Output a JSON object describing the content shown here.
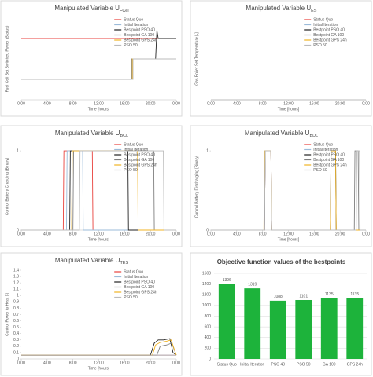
{
  "chart_data": [
    {
      "type": "line",
      "title": "Manipulated Variable U",
      "title_sub": "FCel",
      "x_label": "Time [hours]",
      "y_label": "Fuel Cell Set Switched Power (Status)",
      "xlim": [
        0,
        24
      ],
      "ylim": [
        0,
        1
      ],
      "xticks": [
        {
          "value": 0,
          "label": "0:00"
        },
        {
          "value": 4,
          "label": "4:00"
        },
        {
          "value": 8,
          "label": "8:00"
        },
        {
          "value": 12,
          "label": "12:00"
        },
        {
          "value": 16,
          "label": "16:00"
        },
        {
          "value": 20,
          "label": "20:00"
        },
        {
          "value": 24,
          "label": "0:00"
        }
      ],
      "legend": "upper-right",
      "series": [
        {
          "name": "Status Quo",
          "color": "#e8413c",
          "x": [
            0,
            24
          ],
          "values": [
            0.75,
            0.75
          ]
        },
        {
          "name": "Initial Iteration",
          "color": "#9bbbd9",
          "x": [
            0,
            17,
            17,
            24
          ],
          "values": [
            0.25,
            0.25,
            0.5,
            0.5
          ]
        },
        {
          "name": "Bestpoint PSO 40",
          "color": "#222222",
          "x": [
            0,
            17,
            17,
            20.8,
            21,
            21.2,
            24
          ],
          "values": [
            0.25,
            0.25,
            0.5,
            0.5,
            0.85,
            0.75,
            0.75
          ]
        },
        {
          "name": "Bestpoint GA 100",
          "color": "#7f7f7f",
          "x": [
            0,
            17.1,
            17.1,
            24
          ],
          "values": [
            0.25,
            0.25,
            0.5,
            0.5
          ]
        },
        {
          "name": "Bestpoint GPS 24h",
          "color": "#f0b323",
          "x": [
            0,
            17.2,
            17.2,
            24
          ],
          "values": [
            0.25,
            0.25,
            0.5,
            0.5
          ]
        },
        {
          "name": "PSO 50",
          "color": "#bbbbbb",
          "x": [
            0,
            17.3,
            17.3,
            24
          ],
          "values": [
            0.25,
            0.25,
            0.5,
            0.5
          ]
        }
      ]
    },
    {
      "type": "line",
      "title": "Manipulated Variable U",
      "title_sub": "ES",
      "x_label": "Time [hours]",
      "y_label": "Gas Boiler Set Temperature [-]",
      "xlim": [
        0,
        24
      ],
      "ylim": [
        0,
        1
      ],
      "xticks": [
        {
          "value": 0,
          "label": "0:00"
        },
        {
          "value": 4,
          "label": "4:00"
        },
        {
          "value": 8,
          "label": "8:00"
        },
        {
          "value": 12,
          "label": "12:00"
        },
        {
          "value": 16,
          "label": "16:00"
        },
        {
          "value": 20,
          "label": "20:00"
        },
        {
          "value": 24,
          "label": "0:00"
        }
      ],
      "legend": "upper-right",
      "series": [
        {
          "name": "Status Quo",
          "color": "#e8413c",
          "x": [
            0,
            24
          ],
          "values": [
            0,
            0
          ]
        },
        {
          "name": "Initial Iteration",
          "color": "#9bbbd9",
          "x": [
            0,
            24
          ],
          "values": [
            0,
            0
          ]
        },
        {
          "name": "Bestpoint PSO 40",
          "color": "#222222",
          "x": [
            0,
            24
          ],
          "values": [
            0,
            0
          ]
        },
        {
          "name": "Bestpoint GA 100",
          "color": "#7f7f7f",
          "x": [
            0,
            24
          ],
          "values": [
            0,
            0
          ]
        },
        {
          "name": "Bestpoint GPS 24h",
          "color": "#f0b323",
          "x": [
            0,
            24
          ],
          "values": [
            0,
            0
          ]
        },
        {
          "name": "PSO 50",
          "color": "#bbbbbb",
          "x": [
            0,
            24
          ],
          "values": [
            0,
            0
          ]
        }
      ]
    },
    {
      "type": "line",
      "title": "Manipulated Variable U",
      "title_sub": "BCL",
      "x_label": "Time [hours]",
      "y_label": "Control Battery Charging [Binary]",
      "xlim": [
        0,
        24
      ],
      "ylim": [
        0,
        1.1
      ],
      "yticks": [
        0,
        1
      ],
      "xticks": [
        {
          "value": 0,
          "label": "0:00"
        },
        {
          "value": 4,
          "label": "4:00"
        },
        {
          "value": 8,
          "label": "8:00"
        },
        {
          "value": 12,
          "label": "12:00"
        },
        {
          "value": 16,
          "label": "16:00"
        },
        {
          "value": 20,
          "label": "20:00"
        },
        {
          "value": 24,
          "label": "0:00"
        }
      ],
      "legend": "upper-right",
      "series": [
        {
          "name": "Status Quo",
          "color": "#e8413c",
          "x": [
            0,
            6.5,
            6.6,
            11,
            11.1,
            24
          ],
          "values": [
            0,
            0,
            1,
            1,
            0,
            0
          ]
        },
        {
          "name": "Initial Iteration",
          "color": "#9bbbd9",
          "x": [
            0,
            7,
            7.1,
            9.5,
            9.6,
            24
          ],
          "values": [
            0,
            0,
            1,
            1,
            0,
            0
          ]
        },
        {
          "name": "Bestpoint PSO 40",
          "color": "#222222",
          "x": [
            0,
            7.5,
            7.6,
            16.5,
            16.6,
            24
          ],
          "values": [
            0,
            0,
            1,
            1,
            0,
            0
          ]
        },
        {
          "name": "Bestpoint GA 100",
          "color": "#7f7f7f",
          "x": [
            0,
            8,
            8.1,
            20.5,
            20.6,
            24
          ],
          "values": [
            0,
            0,
            1,
            1,
            0,
            0
          ]
        },
        {
          "name": "Bestpoint GPS 24h",
          "color": "#f0b323",
          "x": [
            0,
            7.8,
            7.9,
            18,
            18.1,
            24
          ],
          "values": [
            0,
            0,
            1,
            1,
            0,
            0
          ]
        },
        {
          "name": "PSO 50",
          "color": "#bbbbbb",
          "x": [
            0,
            9,
            9.1,
            22,
            22.1,
            24
          ],
          "values": [
            0,
            0,
            1,
            1,
            0,
            0
          ]
        }
      ]
    },
    {
      "type": "line",
      "title": "Manipulated Variable U",
      "title_sub": "BDL",
      "x_label": "Time [hours]",
      "y_label": "Control Battery Discharging [Binary]",
      "xlim": [
        0,
        24
      ],
      "ylim": [
        0,
        1.1
      ],
      "yticks": [
        0,
        1
      ],
      "xticks": [
        {
          "value": 0,
          "label": "0:00"
        },
        {
          "value": 4,
          "label": "4:00"
        },
        {
          "value": 8,
          "label": "8:00"
        },
        {
          "value": 12,
          "label": "12:00"
        },
        {
          "value": 16,
          "label": "16:00"
        },
        {
          "value": 20,
          "label": "20:00"
        },
        {
          "value": 24,
          "label": "0:00"
        }
      ],
      "legend": "upper-right",
      "series": [
        {
          "name": "Status Quo",
          "color": "#e8413c",
          "x": [
            0,
            8.3,
            8.4,
            9.3,
            9.4,
            24
          ],
          "values": [
            0,
            0,
            1,
            1,
            0,
            0
          ]
        },
        {
          "name": "Initial Iteration",
          "color": "#9bbbd9",
          "x": [
            0,
            8.3,
            8.4,
            9.3,
            9.4,
            24
          ],
          "values": [
            0,
            0,
            1,
            1,
            0,
            0
          ]
        },
        {
          "name": "Bestpoint PSO 40",
          "color": "#222222",
          "x": [
            0,
            8.3,
            8.4,
            9.3,
            9.4,
            18.5,
            18.6,
            19.3,
            19.4,
            24
          ],
          "values": [
            0,
            0,
            1,
            1,
            0,
            0,
            1,
            1,
            0,
            0
          ]
        },
        {
          "name": "Bestpoint GA 100",
          "color": "#7f7f7f",
          "x": [
            0,
            8.3,
            8.4,
            9.3,
            9.4,
            22.2,
            22.3,
            22.8,
            22.9,
            24
          ],
          "values": [
            0,
            0,
            1,
            1,
            0,
            0,
            1,
            1,
            0,
            0
          ]
        },
        {
          "name": "Bestpoint GPS 24h",
          "color": "#f0b323",
          "x": [
            0,
            8.2,
            8.3,
            9.3,
            9.4,
            18.5,
            18.6,
            19.3,
            19.4,
            24
          ],
          "values": [
            0,
            0,
            1,
            1,
            0,
            0,
            1,
            1,
            0,
            0
          ]
        },
        {
          "name": "PSO 50",
          "color": "#bbbbbb",
          "x": [
            0,
            8.3,
            8.4,
            9.3,
            9.4,
            22.5,
            22.6,
            23,
            23.1,
            24
          ],
          "values": [
            0,
            0,
            1,
            1,
            0,
            0,
            1,
            1,
            0,
            0
          ]
        }
      ]
    },
    {
      "type": "line",
      "title": "Manipulated Variable U",
      "title_sub": "TES",
      "x_label": "Time [hours]",
      "y_label": "Control Power to Heat [-]",
      "xlim": [
        0,
        24
      ],
      "ylim": [
        0,
        1.4
      ],
      "yticks": [
        0,
        0.1,
        0.2,
        0.3,
        0.4,
        0.5,
        0.6,
        0.7,
        0.8,
        0.9,
        1,
        1.1,
        1.2,
        1.3,
        1.4
      ],
      "xticks": [
        {
          "value": 0,
          "label": "0:00"
        },
        {
          "value": 4,
          "label": "4:00"
        },
        {
          "value": 8,
          "label": "8:00"
        },
        {
          "value": 12,
          "label": "12:00"
        },
        {
          "value": 16,
          "label": "16:00"
        },
        {
          "value": 20,
          "label": "20:00"
        },
        {
          "value": 24,
          "label": "0:00"
        }
      ],
      "legend": "upper-right",
      "series": [
        {
          "name": "Status Quo",
          "color": "#e8413c",
          "x": [
            0,
            24
          ],
          "values": [
            0.06,
            0.06
          ]
        },
        {
          "name": "Initial Iteration",
          "color": "#9bbbd9",
          "x": [
            0,
            24
          ],
          "values": [
            0.06,
            0.06
          ]
        },
        {
          "name": "Bestpoint PSO 40",
          "color": "#222222",
          "x": [
            0,
            20,
            20.6,
            21.2,
            22,
            23,
            23.5,
            24
          ],
          "values": [
            0.06,
            0.06,
            0.25,
            0.3,
            0.3,
            0.32,
            0.1,
            0.06
          ]
        },
        {
          "name": "Bestpoint GA 100",
          "color": "#7f7f7f",
          "x": [
            0,
            21,
            21.5,
            22.5,
            23.3,
            24
          ],
          "values": [
            0.06,
            0.06,
            0.2,
            0.22,
            0.25,
            0.06
          ]
        },
        {
          "name": "Bestpoint GPS 24h",
          "color": "#f0b323",
          "x": [
            0,
            20.3,
            20.8,
            21.5,
            22.5,
            23.2,
            24
          ],
          "values": [
            0.06,
            0.06,
            0.22,
            0.26,
            0.28,
            0.3,
            0.06
          ]
        },
        {
          "name": "PSO 50",
          "color": "#bbbbbb",
          "x": [
            0,
            24
          ],
          "values": [
            0.06,
            0.06
          ]
        }
      ]
    },
    {
      "type": "bar",
      "title": "Objective function values of the bestpoints",
      "categories": [
        "Status Quo",
        "Initial Iteration",
        "PSO 40",
        "PSO 50",
        "GA 100",
        "GPS 24h"
      ],
      "values": [
        1396,
        1319,
        1088,
        1101,
        1135,
        1135
      ],
      "color": "#1db33b",
      "ylim": [
        0,
        1600
      ],
      "yticks": [
        0,
        200,
        400,
        600,
        800,
        1000,
        1200,
        1400,
        1600
      ],
      "grid": true
    }
  ]
}
